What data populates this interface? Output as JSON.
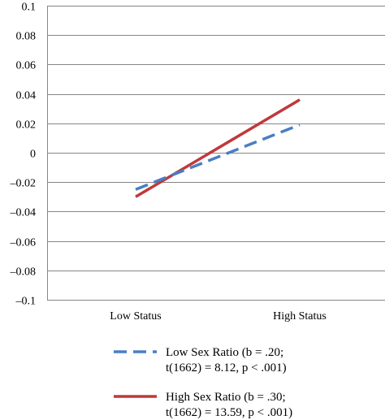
{
  "chart_data": {
    "type": "line",
    "categories": [
      "Low Status",
      "High Status"
    ],
    "ylim": [
      -0.1,
      0.1
    ],
    "yticks": [
      "0.1",
      "0.08",
      "0.06",
      "0.04",
      "0.02",
      "0",
      "–0.02",
      "–0.04",
      "–0.06",
      "–0.08",
      "–0.1"
    ],
    "ytick_values": [
      0.1,
      0.08,
      0.06,
      0.04,
      0.02,
      0,
      -0.02,
      -0.04,
      -0.06,
      -0.08,
      -0.1
    ],
    "grid": true,
    "legend_position": "bottom",
    "series": [
      {
        "name": "Low Sex Ratio",
        "legend_line1": "Low Sex Ratio (b = .20;",
        "legend_line2": "t(1662) = 8.12, p < .001)",
        "values": [
          -0.025,
          0.019
        ],
        "color": "#4a7ec4",
        "style": "dashed"
      },
      {
        "name": "High Sex Ratio",
        "legend_line1": "High Sex Ratio (b = .30;",
        "legend_line2": "t(1662) = 13.59, p < .001)",
        "values": [
          -0.03,
          0.036
        ],
        "color": "#c0393b",
        "style": "solid"
      }
    ]
  }
}
